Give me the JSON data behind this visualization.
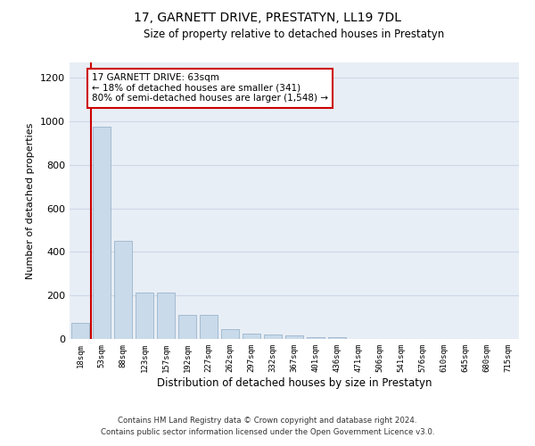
{
  "title": "17, GARNETT DRIVE, PRESTATYN, LL19 7DL",
  "subtitle": "Size of property relative to detached houses in Prestatyn",
  "xlabel": "Distribution of detached houses by size in Prestatyn",
  "ylabel": "Number of detached properties",
  "footnote1": "Contains HM Land Registry data © Crown copyright and database right 2024.",
  "footnote2": "Contains public sector information licensed under the Open Government Licence v3.0.",
  "bar_labels": [
    "18sqm",
    "53sqm",
    "88sqm",
    "123sqm",
    "157sqm",
    "192sqm",
    "227sqm",
    "262sqm",
    "297sqm",
    "332sqm",
    "367sqm",
    "401sqm",
    "436sqm",
    "471sqm",
    "506sqm",
    "541sqm",
    "576sqm",
    "610sqm",
    "645sqm",
    "680sqm",
    "715sqm"
  ],
  "bar_values": [
    75,
    975,
    450,
    215,
    215,
    110,
    110,
    45,
    25,
    20,
    15,
    10,
    8,
    0,
    0,
    0,
    0,
    0,
    0,
    0,
    0
  ],
  "bar_color": "#c9daea",
  "bar_edge_color": "#9ab5cc",
  "grid_color": "#cdd8e8",
  "bg_color": "#e8eef5",
  "red_line_x": 0.5,
  "annotation_line1": "17 GARNETT DRIVE: 63sqm",
  "annotation_line2": "← 18% of detached houses are smaller (341)",
  "annotation_line3": "80% of semi-detached houses are larger (1,548) →",
  "annotation_box_color": "#ffffff",
  "annotation_box_edge": "#cc0000",
  "red_line_color": "#cc0000",
  "ylim": [
    0,
    1270
  ],
  "yticks": [
    0,
    200,
    400,
    600,
    800,
    1000,
    1200
  ]
}
